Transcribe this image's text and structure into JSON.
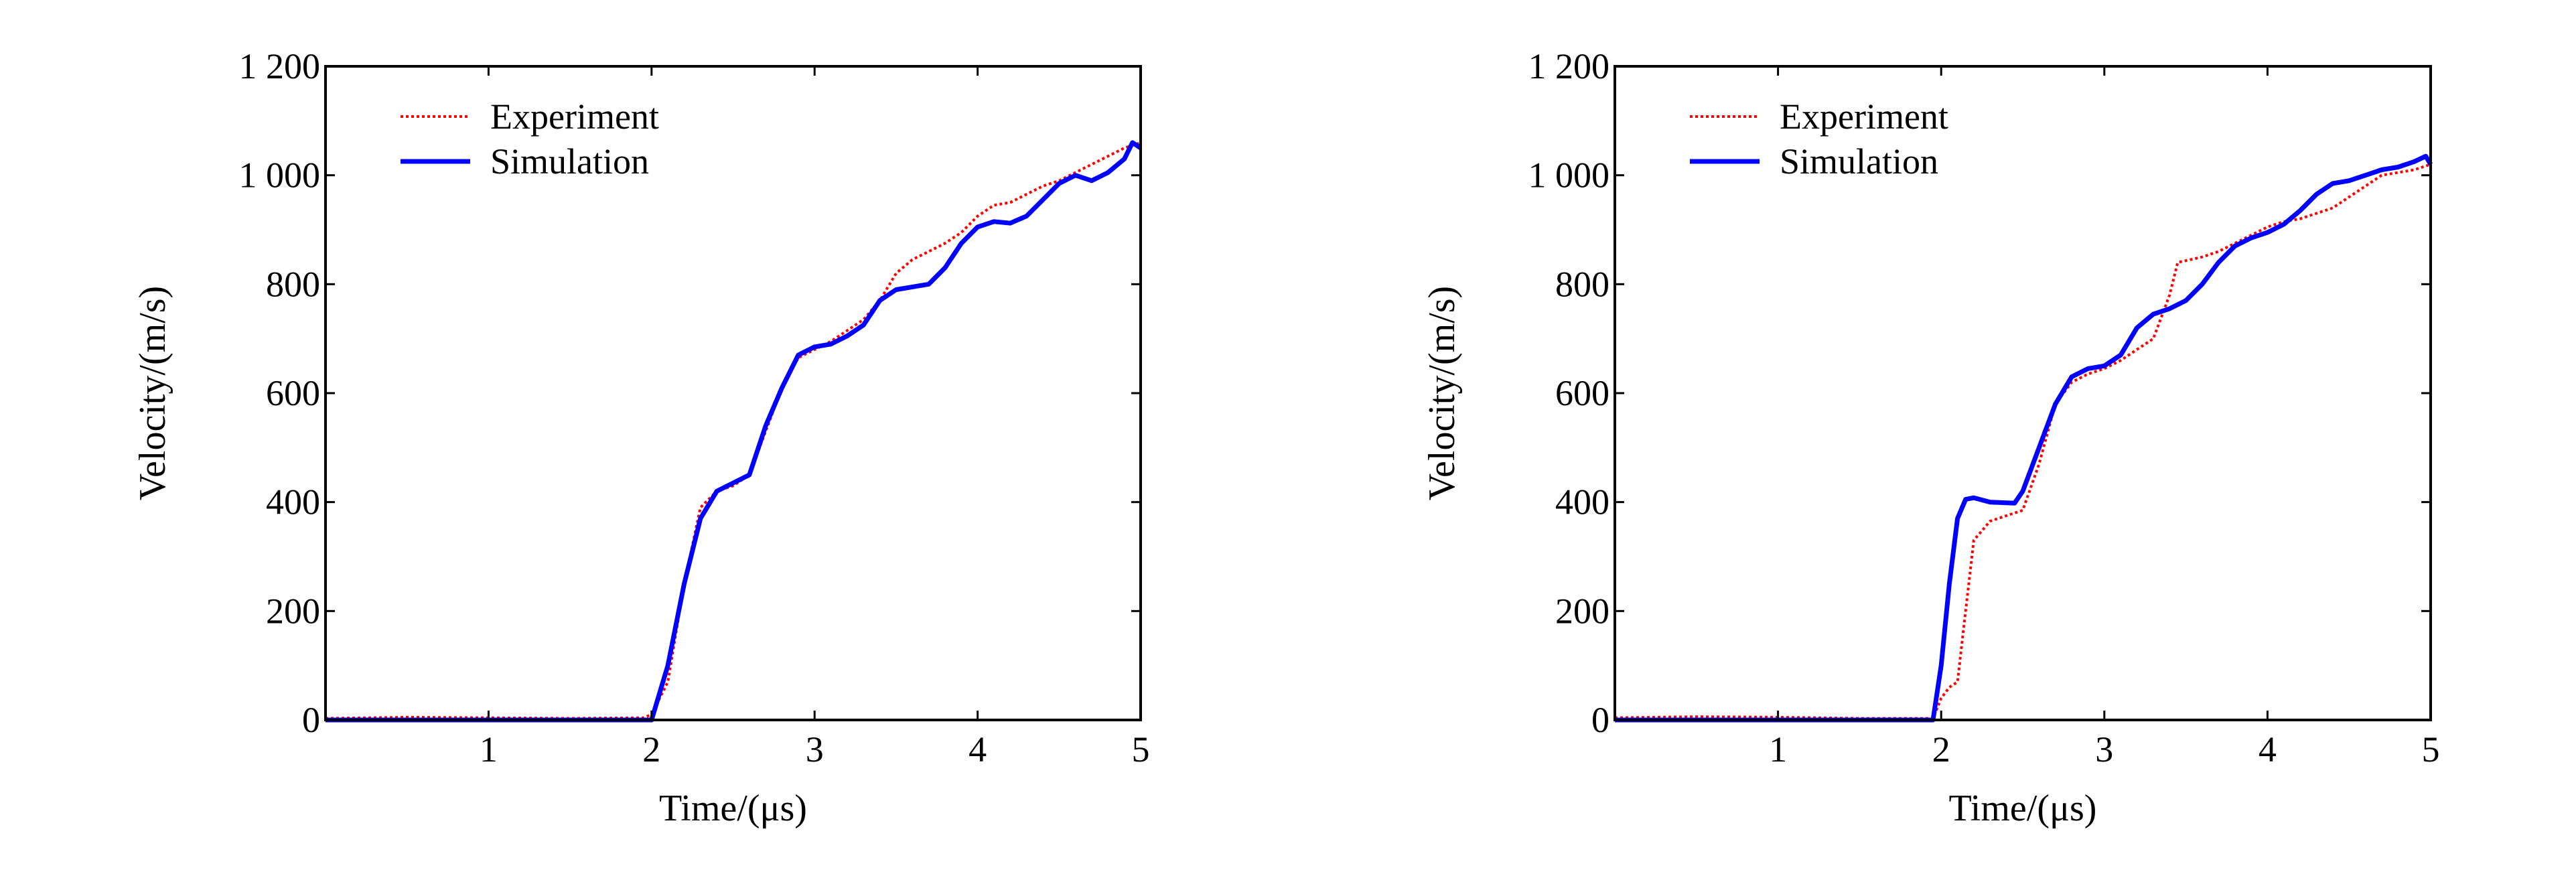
{
  "chart_data": [
    {
      "type": "line",
      "xlabel": "Time/(μs)",
      "ylabel": "Velocity/(m/s)",
      "xlim": [
        0,
        5
      ],
      "ylim": [
        0,
        1200
      ],
      "xticks": [
        {
          "v": 1,
          "label": "1"
        },
        {
          "v": 2,
          "label": "2"
        },
        {
          "v": 3,
          "label": "3"
        },
        {
          "v": 4,
          "label": "4"
        },
        {
          "v": 5,
          "label": "5"
        }
      ],
      "yticks": [
        {
          "v": 0,
          "label": "0"
        },
        {
          "v": 200,
          "label": "200"
        },
        {
          "v": 400,
          "label": "400"
        },
        {
          "v": 600,
          "label": "600"
        },
        {
          "v": 800,
          "label": "800"
        },
        {
          "v": 1000,
          "label": "1 000"
        },
        {
          "v": 1200,
          "label": "1 200"
        }
      ],
      "grid": false,
      "legend": "top-left",
      "series": [
        {
          "name": "Experiment",
          "color": "#ff0000",
          "style": "dotted",
          "x": [
            0,
            0.5,
            1,
            1.5,
            1.95,
            2.0,
            2.1,
            2.2,
            2.3,
            2.4,
            2.5,
            2.6,
            2.7,
            2.8,
            2.9,
            3.0,
            3.1,
            3.2,
            3.3,
            3.4,
            3.5,
            3.6,
            3.7,
            3.8,
            3.9,
            4.0,
            4.1,
            4.2,
            4.3,
            4.4,
            4.5,
            4.6,
            4.7,
            4.8,
            4.9,
            5.0
          ],
          "y": [
            3,
            5,
            4,
            3,
            4,
            10,
            70,
            250,
            390,
            420,
            430,
            450,
            530,
            610,
            665,
            680,
            695,
            715,
            735,
            770,
            820,
            845,
            860,
            875,
            895,
            925,
            945,
            950,
            965,
            980,
            990,
            1005,
            1020,
            1035,
            1050,
            1060
          ]
        },
        {
          "name": "Simulation",
          "color": "#0000ff",
          "style": "solid",
          "x": [
            0,
            1,
            2.0,
            2.1,
            2.2,
            2.3,
            2.4,
            2.5,
            2.6,
            2.7,
            2.8,
            2.9,
            3.0,
            3.1,
            3.2,
            3.3,
            3.4,
            3.5,
            3.6,
            3.7,
            3.8,
            3.9,
            4.0,
            4.1,
            4.2,
            4.3,
            4.4,
            4.5,
            4.6,
            4.7,
            4.8,
            4.9,
            4.95,
            5.0
          ],
          "y": [
            0,
            0,
            0,
            100,
            250,
            370,
            420,
            435,
            450,
            540,
            610,
            670,
            685,
            690,
            705,
            725,
            770,
            790,
            795,
            800,
            830,
            875,
            905,
            915,
            912,
            925,
            955,
            985,
            1000,
            990,
            1005,
            1030,
            1060,
            1050
          ]
        }
      ]
    },
    {
      "type": "line",
      "xlabel": "Time/(μs)",
      "ylabel": "Velocity/(m/s)",
      "xlim": [
        0,
        5
      ],
      "ylim": [
        0,
        1200
      ],
      "xticks": [
        {
          "v": 1,
          "label": "1"
        },
        {
          "v": 2,
          "label": "2"
        },
        {
          "v": 3,
          "label": "3"
        },
        {
          "v": 4,
          "label": "4"
        },
        {
          "v": 5,
          "label": "5"
        }
      ],
      "yticks": [
        {
          "v": 0,
          "label": "0"
        },
        {
          "v": 200,
          "label": "200"
        },
        {
          "v": 400,
          "label": "400"
        },
        {
          "v": 600,
          "label": "600"
        },
        {
          "v": 800,
          "label": "800"
        },
        {
          "v": 1000,
          "label": "1 000"
        },
        {
          "v": 1200,
          "label": "1 200"
        }
      ],
      "grid": false,
      "legend": "top-left",
      "series": [
        {
          "name": "Experiment",
          "color": "#ff0000",
          "style": "dotted",
          "x": [
            0,
            0.5,
            1,
            1.5,
            1.95,
            2.0,
            2.05,
            2.1,
            2.15,
            2.2,
            2.3,
            2.4,
            2.5,
            2.6,
            2.7,
            2.8,
            2.9,
            3.0,
            3.1,
            3.2,
            3.3,
            3.4,
            3.45,
            3.6,
            3.7,
            3.8,
            3.9,
            4.0,
            4.1,
            4.2,
            4.3,
            4.4,
            4.5,
            4.6,
            4.7,
            4.8,
            4.9,
            5.0
          ],
          "y": [
            4,
            6,
            5,
            3,
            3,
            40,
            60,
            70,
            200,
            330,
            365,
            375,
            385,
            470,
            580,
            620,
            635,
            645,
            660,
            680,
            700,
            780,
            840,
            850,
            860,
            875,
            890,
            905,
            915,
            920,
            930,
            940,
            960,
            980,
            1000,
            1005,
            1010,
            1020
          ]
        },
        {
          "name": "Simulation",
          "color": "#0000ff",
          "style": "solid",
          "x": [
            0,
            1,
            1.95,
            2.0,
            2.05,
            2.1,
            2.15,
            2.2,
            2.3,
            2.45,
            2.5,
            2.6,
            2.7,
            2.8,
            2.9,
            3.0,
            3.1,
            3.2,
            3.3,
            3.4,
            3.5,
            3.6,
            3.7,
            3.8,
            3.9,
            4.0,
            4.1,
            4.2,
            4.3,
            4.4,
            4.5,
            4.6,
            4.7,
            4.8,
            4.9,
            4.97,
            5.0
          ],
          "y": [
            0,
            0,
            0,
            100,
            250,
            370,
            405,
            408,
            400,
            398,
            420,
            500,
            580,
            630,
            645,
            650,
            670,
            720,
            745,
            755,
            770,
            800,
            840,
            870,
            885,
            895,
            910,
            935,
            965,
            985,
            990,
            1000,
            1010,
            1015,
            1025,
            1035,
            1020
          ]
        }
      ]
    }
  ]
}
